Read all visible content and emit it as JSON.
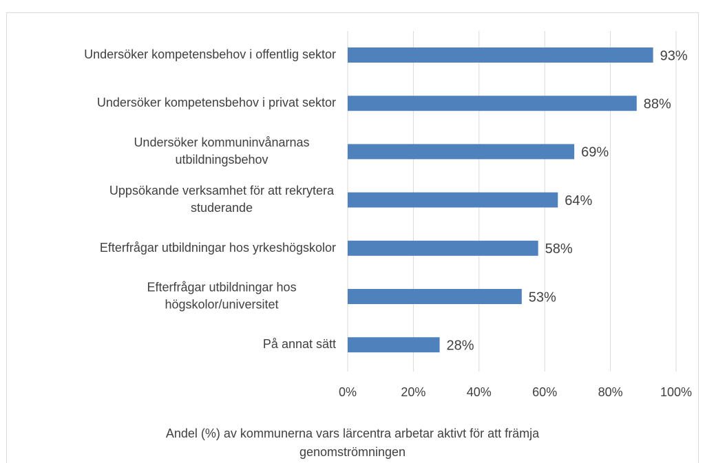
{
  "chart_data": {
    "type": "barh",
    "categories": [
      "Undersöker kompetensbehov i offentlig sektor",
      "Undersöker kompetensbehov i privat sektor",
      "Undersöker kommuninvånarnas utbildningsbehov",
      "Uppsökande verksamhet för att rekrytera studerande",
      "Efterfrågar utbildningar hos yrkeshögskolor",
      "Efterfrågar utbildningar hos högskolor/universitet",
      "På annat sätt"
    ],
    "values": [
      93,
      88,
      69,
      64,
      58,
      53,
      28
    ],
    "value_labels": [
      "93%",
      "88%",
      "69%",
      "64%",
      "58%",
      "53%",
      "28%"
    ],
    "color": "#4f81bd",
    "xlim": [
      0,
      100
    ],
    "xticks": [
      {
        "value": 0,
        "label": "0%"
      },
      {
        "value": 20,
        "label": "20%"
      },
      {
        "value": 40,
        "label": "40%"
      },
      {
        "value": 60,
        "label": "60%"
      },
      {
        "value": 80,
        "label": "80%"
      },
      {
        "value": 100,
        "label": "100%"
      }
    ],
    "xlabel": "Andel (%) av kommunerna vars lärcentra arbetar aktivt för att främja genomströmningen",
    "grid": true
  }
}
